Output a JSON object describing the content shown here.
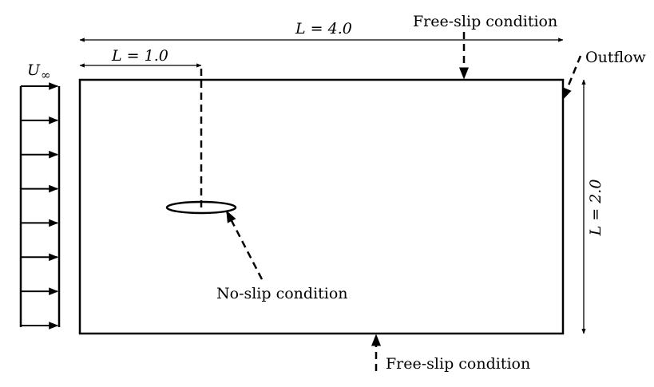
{
  "labels": {
    "u_inf_symbol": "U",
    "u_inf_subscript": "∞",
    "length_total": "L = 4.0",
    "length_cylinder": "L = 1.0",
    "height": "L = 2.0",
    "top_boundary": "Free-slip condition",
    "bottom_boundary": "Free-slip condition",
    "outlet": "Outflow",
    "body_boundary": "No-slip condition"
  },
  "inflow": {
    "arrow_count": 8
  }
}
